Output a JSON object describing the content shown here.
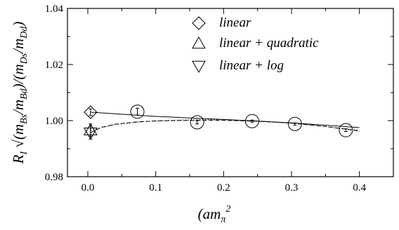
{
  "chart_data": {
    "type": "scatter",
    "xlabel": "(am_π)^2",
    "ylabel": "R_I √(m_Bs/m_Bd)/(m_Ds/m_Dd)",
    "xlim": [
      -0.03,
      0.45
    ],
    "ylim": [
      0.98,
      1.04
    ],
    "grid": false,
    "legend_position": "top-center",
    "x_ticks": [
      0,
      0.1,
      0.2,
      0.3,
      0.4
    ],
    "x_tick_labels": [
      "0.0",
      "0.1",
      "0.2",
      "0.3",
      "0.4"
    ],
    "y_ticks": [
      0.98,
      1.0,
      1.02,
      1.04
    ],
    "y_tick_labels": [
      "0.98",
      "1.00",
      "1.02",
      "1.04"
    ],
    "legend": [
      {
        "label": "linear",
        "marker": "diamond"
      },
      {
        "label": "linear + quadratic",
        "marker": "triangle-up"
      },
      {
        "label": "linear + log",
        "marker": "triangle-down"
      }
    ],
    "series": [
      {
        "marker": "circle",
        "points": [
          {
            "x": 0.073,
            "y": 1.0032,
            "err": 0.0012
          },
          {
            "x": 0.161,
            "y": 0.9994,
            "err": 0.0006
          },
          {
            "x": 0.242,
            "y": 0.9998,
            "err": 0.0004
          },
          {
            "x": 0.305,
            "y": 0.9988,
            "err": 0.0004
          },
          {
            "x": 0.38,
            "y": 0.9966,
            "err": 0.0005
          }
        ]
      },
      {
        "marker": "diamond",
        "points": [
          {
            "x": 0.004,
            "y": 1.003,
            "err": 0.0012
          }
        ]
      },
      {
        "marker": "triangle-up",
        "points": [
          {
            "x": 0.004,
            "y": 0.9966,
            "err": 0.0022
          }
        ]
      },
      {
        "marker": "triangle-down",
        "points": [
          {
            "x": 0.004,
            "y": 0.9957,
            "err": 0.0023
          }
        ]
      }
    ],
    "fits": [
      {
        "style": "solid",
        "points": [
          [
            0.004,
            1.003
          ],
          [
            0.1,
            1.0015
          ],
          [
            0.2,
            1.0004
          ],
          [
            0.3,
            0.9992
          ],
          [
            0.4,
            0.9975
          ]
        ]
      },
      {
        "style": "dotted",
        "points": [
          [
            0.004,
            0.9966
          ],
          [
            0.04,
            0.9986
          ],
          [
            0.08,
            0.9996
          ],
          [
            0.12,
            1.0001
          ],
          [
            0.16,
            1.0003
          ],
          [
            0.2,
            1.0003
          ],
          [
            0.25,
            0.9999
          ],
          [
            0.3,
            0.9991
          ],
          [
            0.35,
            0.9979
          ],
          [
            0.4,
            0.9962
          ]
        ]
      },
      {
        "style": "dashed",
        "points": [
          [
            0.004,
            0.9957
          ],
          [
            0.02,
            0.9976
          ],
          [
            0.04,
            0.9987
          ],
          [
            0.07,
            0.9995
          ],
          [
            0.1,
            0.9999
          ],
          [
            0.15,
            1.0001
          ],
          [
            0.2,
            1.0001
          ],
          [
            0.25,
            0.9998
          ],
          [
            0.3,
            0.9991
          ],
          [
            0.35,
            0.9979
          ],
          [
            0.4,
            0.9964
          ]
        ]
      }
    ]
  }
}
